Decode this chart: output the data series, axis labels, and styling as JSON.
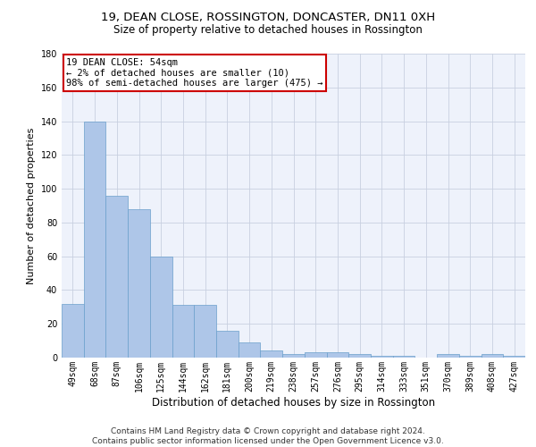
{
  "title1": "19, DEAN CLOSE, ROSSINGTON, DONCASTER, DN11 0XH",
  "title2": "Size of property relative to detached houses in Rossington",
  "xlabel": "Distribution of detached houses by size in Rossington",
  "ylabel": "Number of detached properties",
  "categories": [
    "49sqm",
    "68sqm",
    "87sqm",
    "106sqm",
    "125sqm",
    "144sqm",
    "162sqm",
    "181sqm",
    "200sqm",
    "219sqm",
    "238sqm",
    "257sqm",
    "276sqm",
    "295sqm",
    "314sqm",
    "333sqm",
    "351sqm",
    "370sqm",
    "389sqm",
    "408sqm",
    "427sqm"
  ],
  "values": [
    32,
    140,
    96,
    88,
    60,
    31,
    31,
    16,
    9,
    4,
    2,
    3,
    3,
    2,
    1,
    1,
    0,
    2,
    1,
    2,
    1
  ],
  "bar_color": "#aec6e8",
  "bar_edge_color": "#6a9fcb",
  "annotation_text": "19 DEAN CLOSE: 54sqm\n← 2% of detached houses are smaller (10)\n98% of semi-detached houses are larger (475) →",
  "annotation_box_color": "#ffffff",
  "annotation_box_edge_color": "#cc0000",
  "ylim": [
    0,
    180
  ],
  "yticks": [
    0,
    20,
    40,
    60,
    80,
    100,
    120,
    140,
    160,
    180
  ],
  "grid_color": "#c8d0e0",
  "background_color": "#eef2fb",
  "footer1": "Contains HM Land Registry data © Crown copyright and database right 2024.",
  "footer2": "Contains public sector information licensed under the Open Government Licence v3.0.",
  "title1_fontsize": 9.5,
  "title2_fontsize": 8.5,
  "xlabel_fontsize": 8.5,
  "ylabel_fontsize": 8,
  "tick_fontsize": 7,
  "annotation_fontsize": 7.5,
  "footer_fontsize": 6.5
}
